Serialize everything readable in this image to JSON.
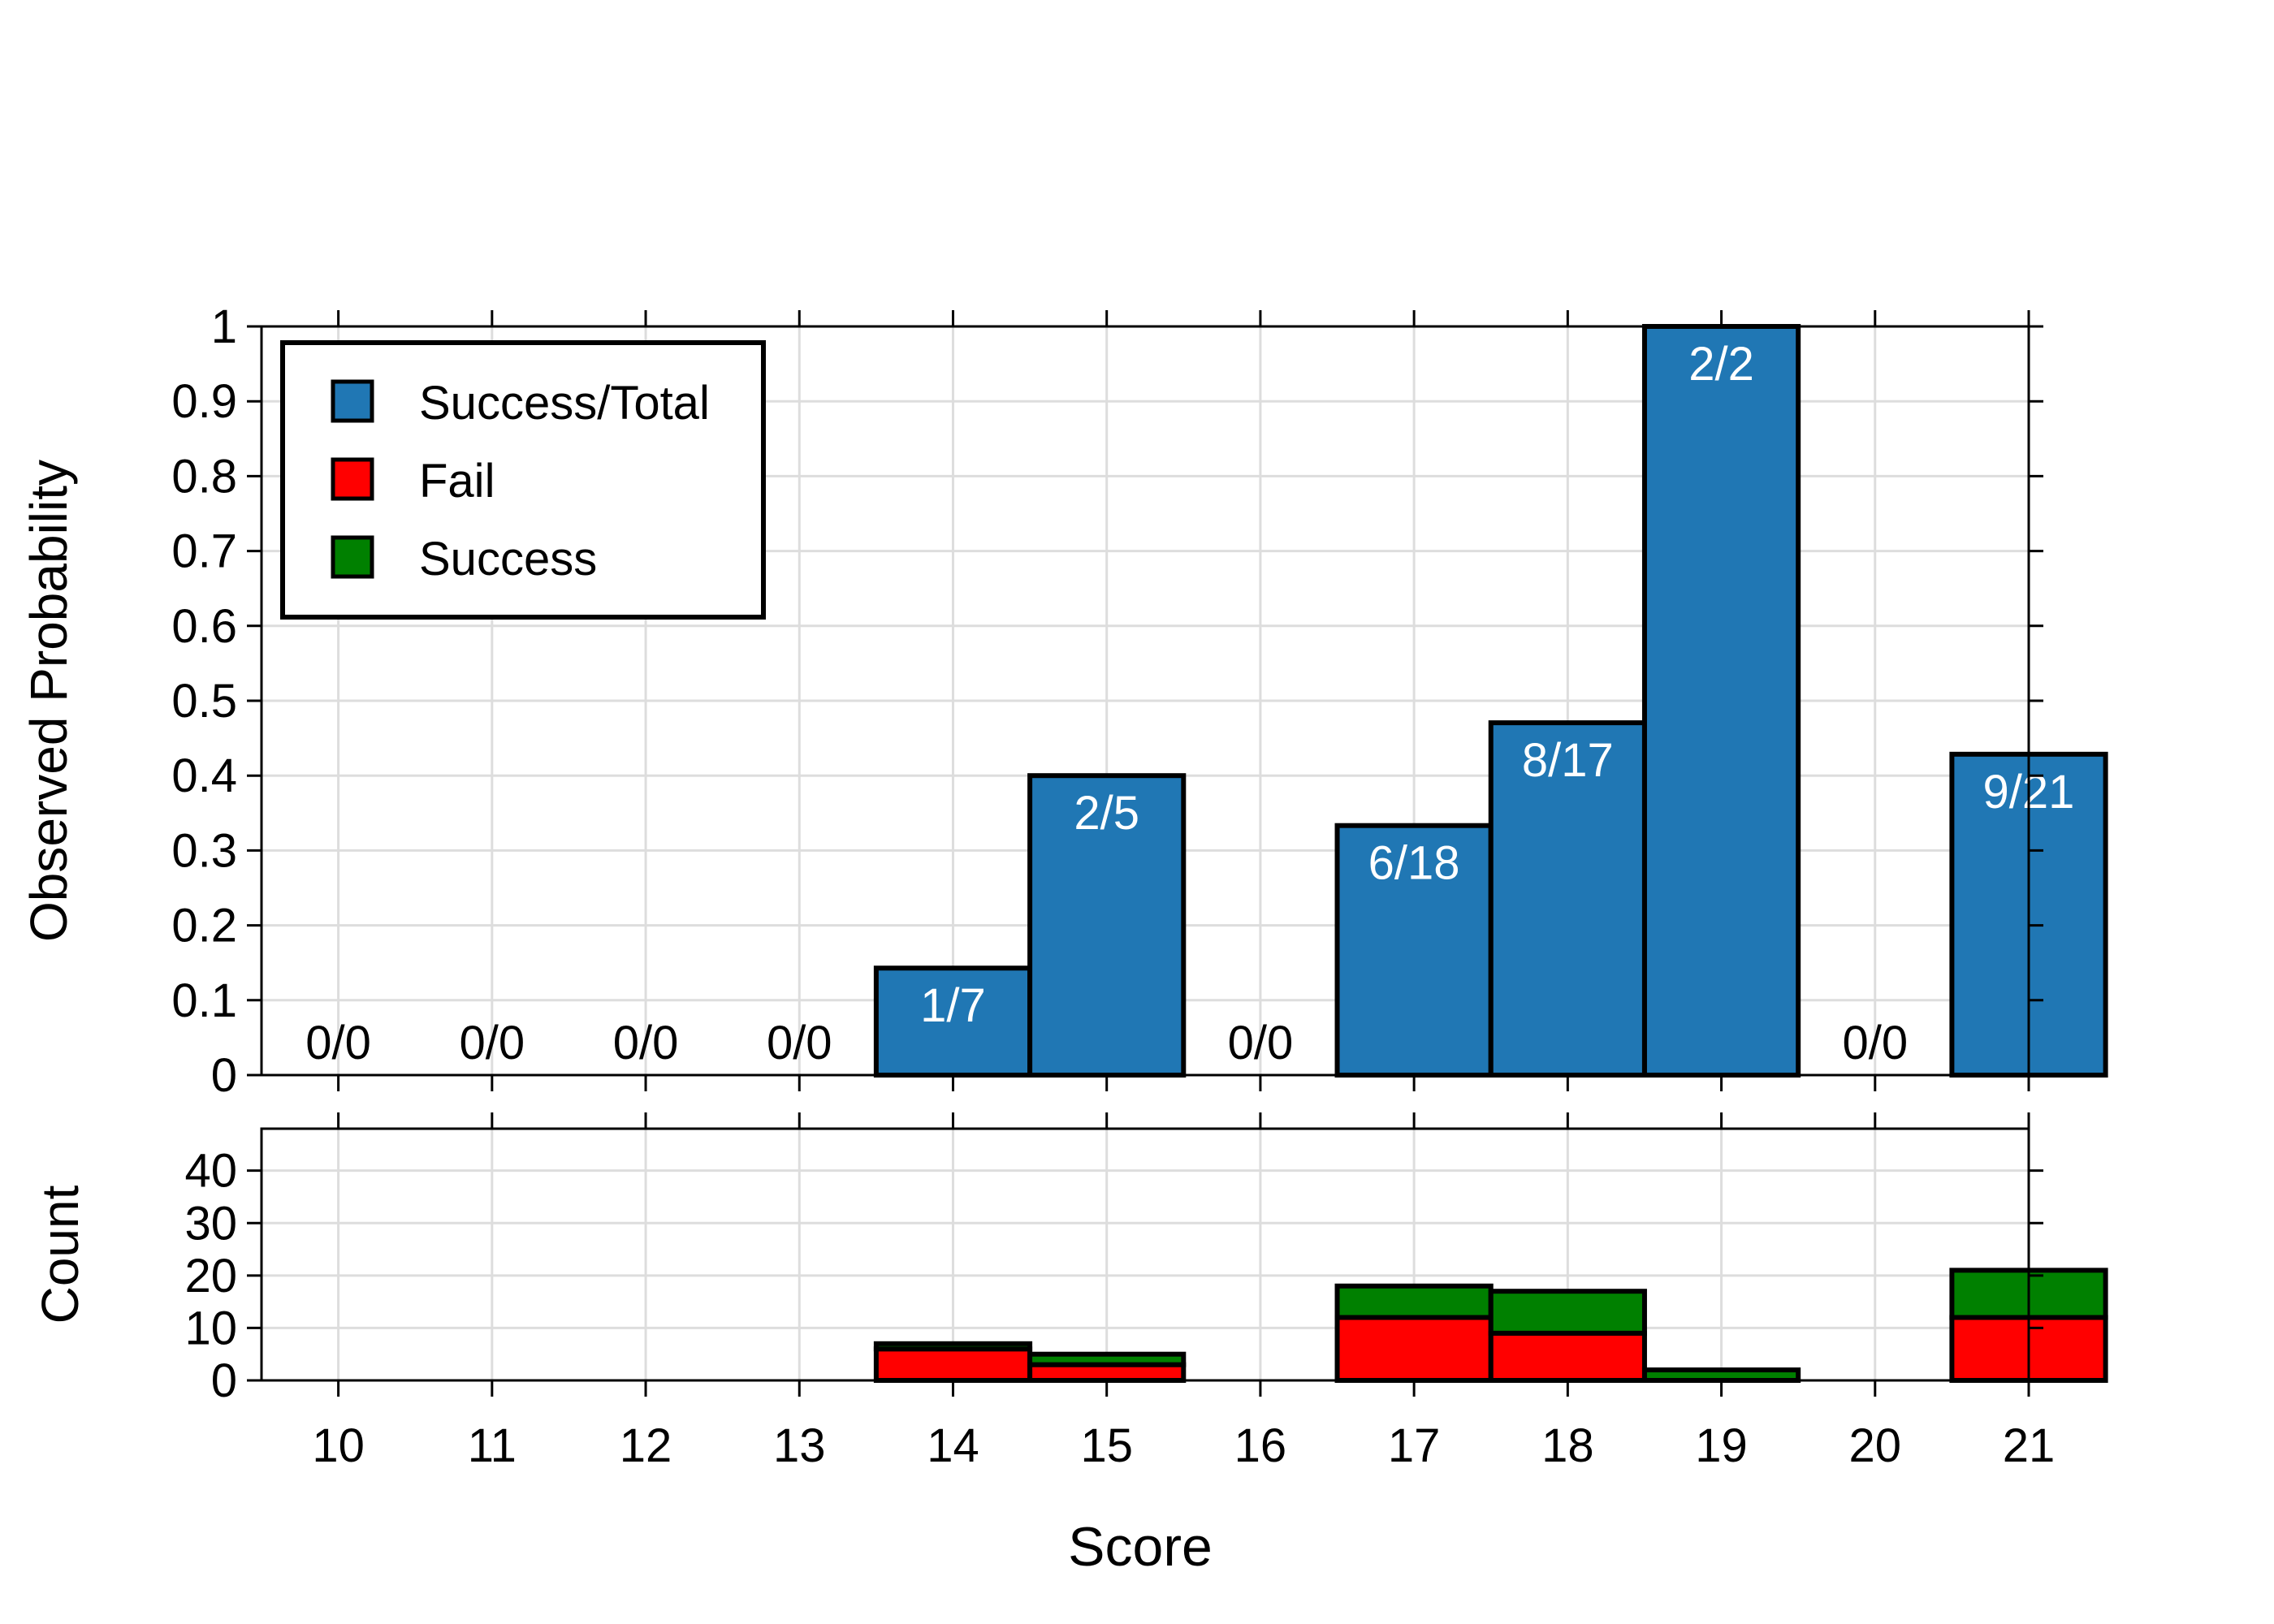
{
  "colors": {
    "success_total": "#2077b4",
    "fail": "#ff0000",
    "success": "#008000",
    "grid": "#dddddd",
    "axis": "#000000",
    "bar_label": "#ffffff"
  },
  "chart_data": [
    {
      "type": "bar",
      "panel": "top",
      "xlabel": "",
      "ylabel": "Observed Probability",
      "ylim": [
        0,
        1
      ],
      "yticks": [
        "0",
        "0.1",
        "0.2",
        "0.3",
        "0.4",
        "0.5",
        "0.6",
        "0.7",
        "0.8",
        "0.9",
        "1"
      ],
      "categories": [
        "10",
        "11",
        "12",
        "13",
        "14",
        "15",
        "16",
        "17",
        "18",
        "19",
        "20",
        "21"
      ],
      "values": [
        0,
        0,
        0,
        0,
        0.1429,
        0.4,
        0,
        0.3333,
        0.4706,
        1.0,
        0,
        0.4286
      ],
      "labels": [
        "0/0",
        "0/0",
        "0/0",
        "0/0",
        "1/7",
        "2/5",
        "0/0",
        "6/18",
        "8/17",
        "2/2",
        "0/0",
        "9/21"
      ],
      "grid": true,
      "legend": {
        "position": "top-left",
        "entries": [
          {
            "name": "Success/Total",
            "color_key": "success_total"
          },
          {
            "name": "Fail",
            "color_key": "fail"
          },
          {
            "name": "Success",
            "color_key": "success"
          }
        ]
      }
    },
    {
      "type": "bar",
      "panel": "bottom",
      "stacked": true,
      "xlabel": "Score",
      "ylabel": "Count",
      "ylim": [
        0,
        48
      ],
      "yticks": [
        "0",
        "10",
        "20",
        "30",
        "40"
      ],
      "categories": [
        "10",
        "11",
        "12",
        "13",
        "14",
        "15",
        "16",
        "17",
        "18",
        "19",
        "20",
        "21"
      ],
      "series": [
        {
          "name": "Fail",
          "color_key": "fail",
          "values": [
            0,
            0,
            0,
            0,
            6,
            3,
            0,
            12,
            9,
            0,
            0,
            12
          ]
        },
        {
          "name": "Success",
          "color_key": "success",
          "values": [
            0,
            0,
            0,
            0,
            1,
            2,
            0,
            6,
            8,
            2,
            0,
            9
          ]
        }
      ],
      "grid": true
    }
  ]
}
